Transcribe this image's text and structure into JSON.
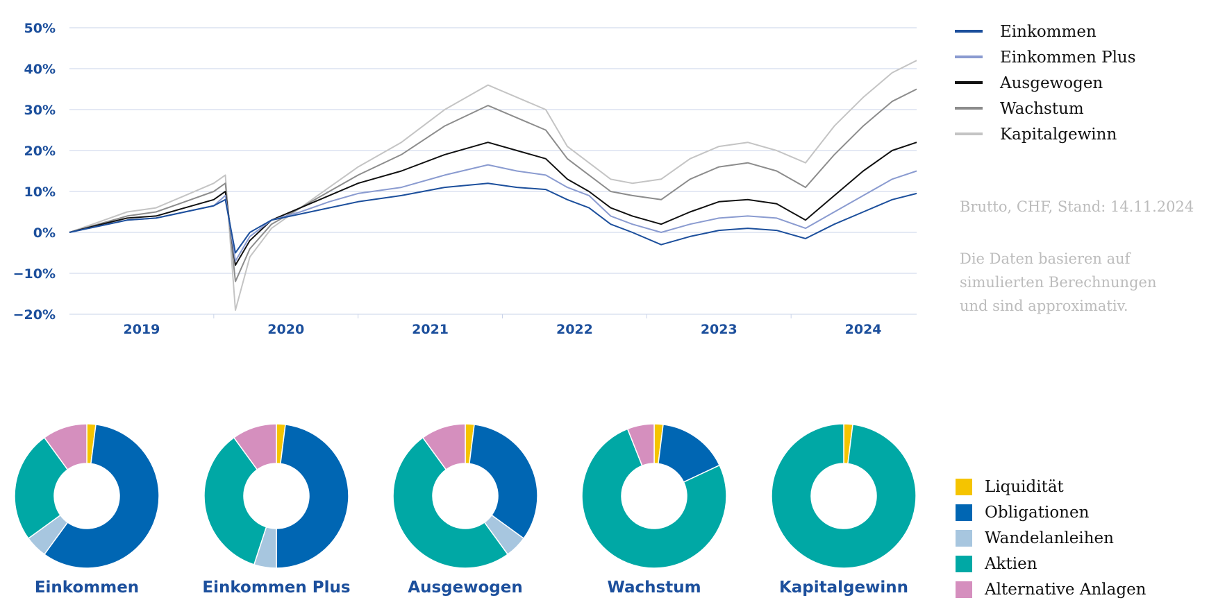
{
  "colors": {
    "liquiditaet": "#f5c400",
    "obligationen": "#0066b3",
    "wandelanleihen": "#a7c6df",
    "aktien": "#00a8a5",
    "alternative": "#d58fbe",
    "axis_text": "#1c4f9c",
    "grid": "#c9d3e8"
  },
  "line_chart": {
    "notes": {
      "stand": "Brutto, CHF, Stand: 14.11.2024",
      "line1": "Die Daten basieren auf",
      "line2": "simulierten Berechnungen",
      "line3": "und sind approximativ."
    }
  },
  "chart_data": [
    {
      "type": "line",
      "x_ticks": [
        "2019",
        "2020",
        "2021",
        "2022",
        "2023",
        "2024"
      ],
      "y_ticks": [
        "50%",
        "40%",
        "30%",
        "20%",
        "10%",
        "0%",
        "−10%",
        "−20%"
      ],
      "ylim": [
        -20,
        50
      ],
      "xlim": [
        2019.0,
        2024.87
      ],
      "grid": true,
      "legend_position": "right",
      "series": [
        {
          "name": "Einkommen",
          "color": "#1c4f9c",
          "x": [
            2019.0,
            2019.2,
            2019.4,
            2019.6,
            2019.8,
            2020.0,
            2020.08,
            2020.15,
            2020.25,
            2020.4,
            2020.6,
            2020.8,
            2021.0,
            2021.3,
            2021.6,
            2021.9,
            2022.1,
            2022.3,
            2022.45,
            2022.6,
            2022.75,
            2022.9,
            2023.1,
            2023.3,
            2023.5,
            2023.7,
            2023.9,
            2024.1,
            2024.3,
            2024.5,
            2024.7,
            2024.87
          ],
          "y": [
            0,
            1.5,
            3,
            3.5,
            5,
            6.5,
            8,
            -5,
            0,
            3,
            4.5,
            6,
            7.5,
            9,
            11,
            12,
            11,
            10.5,
            8,
            6,
            2,
            0,
            -3,
            -1,
            0.5,
            1,
            0.5,
            -1.5,
            2,
            5,
            8,
            9.5
          ]
        },
        {
          "name": "Einkommen Plus",
          "color": "#8a9bd0",
          "x": [
            2019.0,
            2019.2,
            2019.4,
            2019.6,
            2019.8,
            2020.0,
            2020.08,
            2020.15,
            2020.25,
            2020.4,
            2020.6,
            2020.8,
            2021.0,
            2021.3,
            2021.6,
            2021.9,
            2022.1,
            2022.3,
            2022.45,
            2022.6,
            2022.75,
            2022.9,
            2023.1,
            2023.3,
            2023.5,
            2023.7,
            2023.9,
            2024.1,
            2024.3,
            2024.5,
            2024.7,
            2024.87
          ],
          "y": [
            0,
            1.5,
            3,
            3.5,
            5,
            6.5,
            9,
            -7,
            -1,
            3,
            5,
            7.5,
            9.5,
            11,
            14,
            16.5,
            15,
            14,
            11,
            9,
            4,
            2,
            0,
            2,
            3.5,
            4,
            3.5,
            1,
            5,
            9,
            13,
            15
          ]
        },
        {
          "name": "Ausgewogen",
          "color": "#111111",
          "x": [
            2019.0,
            2019.2,
            2019.4,
            2019.6,
            2019.8,
            2020.0,
            2020.08,
            2020.15,
            2020.25,
            2020.4,
            2020.6,
            2020.8,
            2021.0,
            2021.3,
            2021.6,
            2021.9,
            2022.1,
            2022.3,
            2022.45,
            2022.6,
            2022.75,
            2022.9,
            2023.1,
            2023.3,
            2023.5,
            2023.7,
            2023.9,
            2024.1,
            2024.3,
            2024.5,
            2024.7,
            2024.87
          ],
          "y": [
            0,
            1.8,
            3.5,
            4,
            6,
            8,
            10,
            -8,
            -2,
            3,
            6,
            9,
            12,
            15,
            19,
            22,
            20,
            18,
            13,
            10,
            6,
            4,
            2,
            5,
            7.5,
            8,
            7,
            3,
            9,
            15,
            20,
            22
          ]
        },
        {
          "name": "Wachstum",
          "color": "#8c8c8c",
          "x": [
            2019.0,
            2019.2,
            2019.4,
            2019.6,
            2019.8,
            2020.0,
            2020.08,
            2020.15,
            2020.25,
            2020.4,
            2020.6,
            2020.8,
            2021.0,
            2021.3,
            2021.6,
            2021.9,
            2022.1,
            2022.3,
            2022.45,
            2022.6,
            2022.75,
            2022.9,
            2023.1,
            2023.3,
            2023.5,
            2023.7,
            2023.9,
            2024.1,
            2024.3,
            2024.5,
            2024.7,
            2024.87
          ],
          "y": [
            0,
            2,
            4,
            5,
            7.5,
            10,
            12,
            -12,
            -4,
            2,
            6,
            10,
            14,
            19,
            26,
            31,
            28,
            25,
            18,
            14,
            10,
            9,
            8,
            13,
            16,
            17,
            15,
            11,
            19,
            26,
            32,
            35
          ]
        },
        {
          "name": "Kapitalgewinn",
          "color": "#c4c4c4",
          "x": [
            2019.0,
            2019.2,
            2019.4,
            2019.6,
            2019.8,
            2020.0,
            2020.08,
            2020.15,
            2020.25,
            2020.4,
            2020.6,
            2020.8,
            2021.0,
            2021.3,
            2021.6,
            2021.9,
            2022.1,
            2022.3,
            2022.45,
            2022.6,
            2022.75,
            2022.9,
            2023.1,
            2023.3,
            2023.5,
            2023.7,
            2023.9,
            2024.1,
            2024.3,
            2024.5,
            2024.7,
            2024.87
          ],
          "y": [
            0,
            2.5,
            5,
            6,
            9,
            12,
            14,
            -19,
            -6,
            1,
            6,
            11,
            16,
            22,
            30,
            36,
            33,
            30,
            21,
            17,
            13,
            12,
            13,
            18,
            21,
            22,
            20,
            17,
            26,
            33,
            39,
            42
          ]
        }
      ]
    },
    {
      "type": "pie",
      "title": "Einkommen",
      "categories": [
        "Liquidität",
        "Obligationen",
        "Wandelanleihen",
        "Aktien",
        "Alternative Anlagen"
      ],
      "values": [
        2,
        58,
        5,
        25,
        10
      ]
    },
    {
      "type": "pie",
      "title": "Einkommen Plus",
      "categories": [
        "Liquidität",
        "Obligationen",
        "Wandelanleihen",
        "Aktien",
        "Alternative Anlagen"
      ],
      "values": [
        2,
        48,
        5,
        35,
        10
      ]
    },
    {
      "type": "pie",
      "title": "Ausgewogen",
      "categories": [
        "Liquidität",
        "Obligationen",
        "Wandelanleihen",
        "Aktien",
        "Alternative Anlagen"
      ],
      "values": [
        2,
        33,
        5,
        50,
        10
      ]
    },
    {
      "type": "pie",
      "title": "Wachstum",
      "categories": [
        "Liquidität",
        "Obligationen",
        "Wandelanleihen",
        "Aktien",
        "Alternative Anlagen"
      ],
      "values": [
        2,
        16,
        0,
        76,
        6
      ]
    },
    {
      "type": "pie",
      "title": "Kapitalgewinn",
      "categories": [
        "Liquidität",
        "Obligationen",
        "Wandelanleihen",
        "Aktien",
        "Alternative Anlagen"
      ],
      "values": [
        2,
        0,
        0,
        98,
        0
      ]
    }
  ],
  "pie_legend": [
    {
      "label": "Liquidität",
      "color": "#f5c400"
    },
    {
      "label": "Obligationen",
      "color": "#0066b3"
    },
    {
      "label": "Wandelanleihen",
      "color": "#a7c6df"
    },
    {
      "label": "Aktien",
      "color": "#00a8a5"
    },
    {
      "label": "Alternative Anlagen",
      "color": "#d58fbe"
    }
  ]
}
